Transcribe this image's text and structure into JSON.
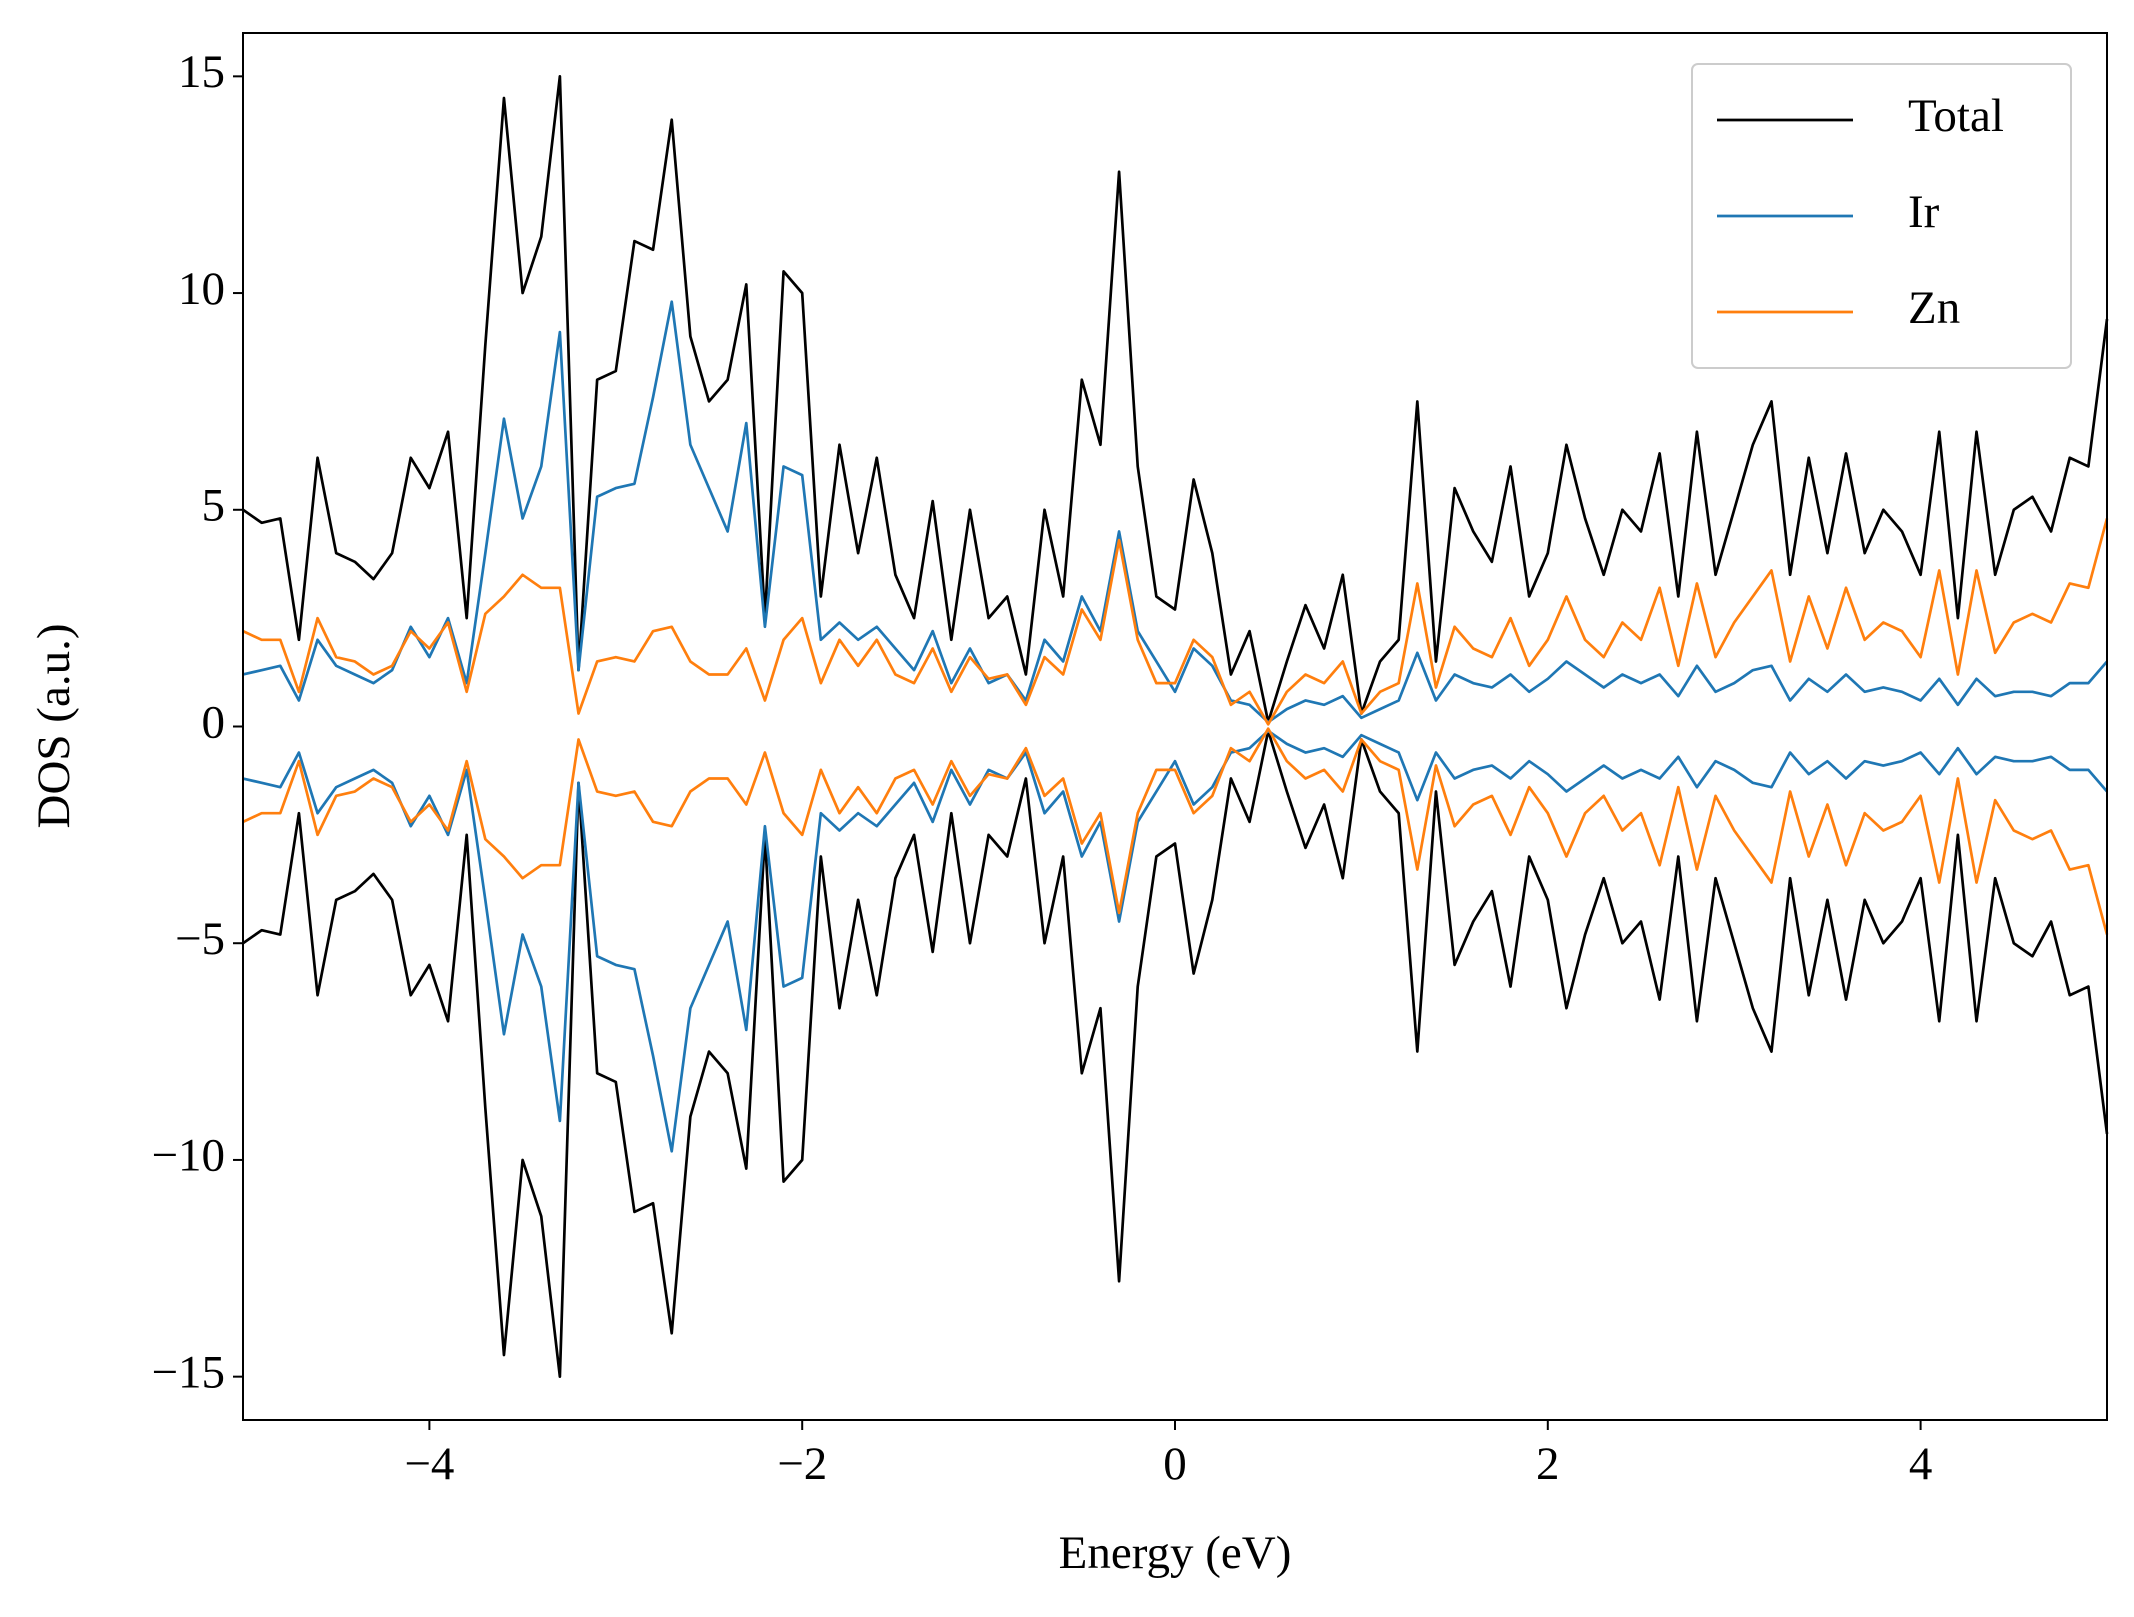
{
  "chart_data": {
    "type": "line",
    "xlabel": "Energy (eV)",
    "ylabel": "DOS (a.u.)",
    "xlim": [
      -5,
      5
    ],
    "ylim": [
      -16,
      16
    ],
    "xticks": [
      {
        "value": -4,
        "label": "−4"
      },
      {
        "value": -2,
        "label": "−2"
      },
      0,
      2,
      4
    ],
    "yticks": [
      {
        "value": -15,
        "label": "−15"
      },
      {
        "value": -10,
        "label": "−10"
      },
      {
        "value": -5,
        "label": "−5"
      },
      0,
      5,
      10,
      15
    ],
    "legend": "upper right",
    "x": [
      -5.0,
      -4.9,
      -4.8,
      -4.7,
      -4.6,
      -4.5,
      -4.4,
      -4.3,
      -4.2,
      -4.1,
      -4.0,
      -3.9,
      -3.8,
      -3.7,
      -3.6,
      -3.5,
      -3.4,
      -3.3,
      -3.2,
      -3.1,
      -3.0,
      -2.9,
      -2.8,
      -2.7,
      -2.6,
      -2.5,
      -2.4,
      -2.3,
      -2.2,
      -2.1,
      -2.0,
      -1.9,
      -1.8,
      -1.7,
      -1.6,
      -1.5,
      -1.4,
      -1.3,
      -1.2,
      -1.1,
      -1.0,
      -0.9,
      -0.8,
      -0.7,
      -0.6,
      -0.5,
      -0.4,
      -0.3,
      -0.2,
      -0.1,
      0.0,
      0.1,
      0.2,
      0.3,
      0.4,
      0.5,
      0.6,
      0.7,
      0.8,
      0.9,
      1.0,
      1.1,
      1.2,
      1.3,
      1.4,
      1.5,
      1.6,
      1.7,
      1.8,
      1.9,
      2.0,
      2.1,
      2.2,
      2.3,
      2.4,
      2.5,
      2.6,
      2.7,
      2.8,
      2.9,
      3.0,
      3.1,
      3.2,
      3.3,
      3.4,
      3.5,
      3.6,
      3.7,
      3.8,
      3.9,
      4.0,
      4.1,
      4.2,
      4.3,
      4.4,
      4.5,
      4.6,
      4.7,
      4.8,
      4.9,
      5.0
    ],
    "series": [
      {
        "name": "Total",
        "color": "#000000",
        "values": [
          5.0,
          4.7,
          4.8,
          2.0,
          6.2,
          4.0,
          3.8,
          3.4,
          4.0,
          6.2,
          5.5,
          6.8,
          2.5,
          8.8,
          14.5,
          10.0,
          11.3,
          15.0,
          1.3,
          8.0,
          8.2,
          11.2,
          11.0,
          14.0,
          9.0,
          7.5,
          8.0,
          10.2,
          2.5,
          10.5,
          10.0,
          3.0,
          6.5,
          4.0,
          6.2,
          3.5,
          2.5,
          5.2,
          2.0,
          5.0,
          2.5,
          3.0,
          1.2,
          5.0,
          3.0,
          8.0,
          6.5,
          12.8,
          6.0,
          3.0,
          2.7,
          5.7,
          4.0,
          1.2,
          2.2,
          0.1,
          1.5,
          2.8,
          1.8,
          3.5,
          0.3,
          1.5,
          2.0,
          7.5,
          1.5,
          5.5,
          4.5,
          3.8,
          6.0,
          3.0,
          4.0,
          6.5,
          4.8,
          3.5,
          5.0,
          4.5,
          6.3,
          3.0,
          6.8,
          3.5,
          5.0,
          6.5,
          7.5,
          3.5,
          6.2,
          4.0,
          6.3,
          4.0,
          5.0,
          4.5,
          3.5,
          6.8,
          2.5,
          6.8,
          3.5,
          5.0,
          5.3,
          4.5,
          6.2,
          6.0,
          9.4
        ],
        "values_down": [
          -5.0,
          -4.7,
          -4.8,
          -2.0,
          -6.2,
          -4.0,
          -3.8,
          -3.4,
          -4.0,
          -6.2,
          -5.5,
          -6.8,
          -2.5,
          -8.8,
          -14.5,
          -10.0,
          -11.3,
          -15.0,
          -1.3,
          -8.0,
          -8.2,
          -11.2,
          -11.0,
          -14.0,
          -9.0,
          -7.5,
          -8.0,
          -10.2,
          -2.5,
          -10.5,
          -10.0,
          -3.0,
          -6.5,
          -4.0,
          -6.2,
          -3.5,
          -2.5,
          -5.2,
          -2.0,
          -5.0,
          -2.5,
          -3.0,
          -1.2,
          -5.0,
          -3.0,
          -8.0,
          -6.5,
          -12.8,
          -6.0,
          -3.0,
          -2.7,
          -5.7,
          -4.0,
          -1.2,
          -2.2,
          -0.1,
          -1.5,
          -2.8,
          -1.8,
          -3.5,
          -0.3,
          -1.5,
          -2.0,
          -7.5,
          -1.5,
          -5.5,
          -4.5,
          -3.8,
          -6.0,
          -3.0,
          -4.0,
          -6.5,
          -4.8,
          -3.5,
          -5.0,
          -4.5,
          -6.3,
          -3.0,
          -6.8,
          -3.5,
          -5.0,
          -6.5,
          -7.5,
          -3.5,
          -6.2,
          -4.0,
          -6.3,
          -4.0,
          -5.0,
          -4.5,
          -3.5,
          -6.8,
          -2.5,
          -6.8,
          -3.5,
          -5.0,
          -5.3,
          -4.5,
          -6.2,
          -6.0,
          -9.4
        ]
      },
      {
        "name": "Ir",
        "color": "#1f77b4",
        "values": [
          1.2,
          1.3,
          1.4,
          0.6,
          2.0,
          1.4,
          1.2,
          1.0,
          1.3,
          2.3,
          1.6,
          2.5,
          1.0,
          4.0,
          7.1,
          4.8,
          6.0,
          9.1,
          1.3,
          5.3,
          5.5,
          5.6,
          7.6,
          9.8,
          6.5,
          5.5,
          4.5,
          7.0,
          2.3,
          6.0,
          5.8,
          2.0,
          2.4,
          2.0,
          2.3,
          1.8,
          1.3,
          2.2,
          1.0,
          1.8,
          1.0,
          1.2,
          0.6,
          2.0,
          1.5,
          3.0,
          2.2,
          4.5,
          2.2,
          1.5,
          0.8,
          1.8,
          1.4,
          0.6,
          0.5,
          0.1,
          0.4,
          0.6,
          0.5,
          0.7,
          0.2,
          0.4,
          0.6,
          1.7,
          0.6,
          1.2,
          1.0,
          0.9,
          1.2,
          0.8,
          1.1,
          1.5,
          1.2,
          0.9,
          1.2,
          1.0,
          1.2,
          0.7,
          1.4,
          0.8,
          1.0,
          1.3,
          1.4,
          0.6,
          1.1,
          0.8,
          1.2,
          0.8,
          0.9,
          0.8,
          0.6,
          1.1,
          0.5,
          1.1,
          0.7,
          0.8,
          0.8,
          0.7,
          1.0,
          1.0,
          1.5
        ],
        "values_down": [
          -1.2,
          -1.3,
          -1.4,
          -0.6,
          -2.0,
          -1.4,
          -1.2,
          -1.0,
          -1.3,
          -2.3,
          -1.6,
          -2.5,
          -1.0,
          -4.0,
          -7.1,
          -4.8,
          -6.0,
          -9.1,
          -1.3,
          -5.3,
          -5.5,
          -5.6,
          -7.6,
          -9.8,
          -6.5,
          -5.5,
          -4.5,
          -7.0,
          -2.3,
          -6.0,
          -5.8,
          -2.0,
          -2.4,
          -2.0,
          -2.3,
          -1.8,
          -1.3,
          -2.2,
          -1.0,
          -1.8,
          -1.0,
          -1.2,
          -0.6,
          -2.0,
          -1.5,
          -3.0,
          -2.2,
          -4.5,
          -2.2,
          -1.5,
          -0.8,
          -1.8,
          -1.4,
          -0.6,
          -0.5,
          -0.1,
          -0.4,
          -0.6,
          -0.5,
          -0.7,
          -0.2,
          -0.4,
          -0.6,
          -1.7,
          -0.6,
          -1.2,
          -1.0,
          -0.9,
          -1.2,
          -0.8,
          -1.1,
          -1.5,
          -1.2,
          -0.9,
          -1.2,
          -1.0,
          -1.2,
          -0.7,
          -1.4,
          -0.8,
          -1.0,
          -1.3,
          -1.4,
          -0.6,
          -1.1,
          -0.8,
          -1.2,
          -0.8,
          -0.9,
          -0.8,
          -0.6,
          -1.1,
          -0.5,
          -1.1,
          -0.7,
          -0.8,
          -0.8,
          -0.7,
          -1.0,
          -1.0,
          -1.5
        ]
      },
      {
        "name": "Zn",
        "color": "#ff7f0e",
        "values": [
          2.2,
          2.0,
          2.0,
          0.8,
          2.5,
          1.6,
          1.5,
          1.2,
          1.4,
          2.2,
          1.8,
          2.4,
          0.8,
          2.6,
          3.0,
          3.5,
          3.2,
          3.2,
          0.3,
          1.5,
          1.6,
          1.5,
          2.2,
          2.3,
          1.5,
          1.2,
          1.2,
          1.8,
          0.6,
          2.0,
          2.5,
          1.0,
          2.0,
          1.4,
          2.0,
          1.2,
          1.0,
          1.8,
          0.8,
          1.6,
          1.1,
          1.2,
          0.5,
          1.6,
          1.2,
          2.7,
          2.0,
          4.3,
          2.0,
          1.0,
          1.0,
          2.0,
          1.6,
          0.5,
          0.8,
          0.05,
          0.8,
          1.2,
          1.0,
          1.5,
          0.3,
          0.8,
          1.0,
          3.3,
          0.9,
          2.3,
          1.8,
          1.6,
          2.5,
          1.4,
          2.0,
          3.0,
          2.0,
          1.6,
          2.4,
          2.0,
          3.2,
          1.4,
          3.3,
          1.6,
          2.4,
          3.0,
          3.6,
          1.5,
          3.0,
          1.8,
          3.2,
          2.0,
          2.4,
          2.2,
          1.6,
          3.6,
          1.2,
          3.6,
          1.7,
          2.4,
          2.6,
          2.4,
          3.3,
          3.2,
          4.8
        ],
        "values_down": [
          -2.2,
          -2.0,
          -2.0,
          -0.8,
          -2.5,
          -1.6,
          -1.5,
          -1.2,
          -1.4,
          -2.2,
          -1.8,
          -2.4,
          -0.8,
          -2.6,
          -3.0,
          -3.5,
          -3.2,
          -3.2,
          -0.3,
          -1.5,
          -1.6,
          -1.5,
          -2.2,
          -2.3,
          -1.5,
          -1.2,
          -1.2,
          -1.8,
          -0.6,
          -2.0,
          -2.5,
          -1.0,
          -2.0,
          -1.4,
          -2.0,
          -1.2,
          -1.0,
          -1.8,
          -0.8,
          -1.6,
          -1.1,
          -1.2,
          -0.5,
          -1.6,
          -1.2,
          -2.7,
          -2.0,
          -4.3,
          -2.0,
          -1.0,
          -1.0,
          -2.0,
          -1.6,
          -0.5,
          -0.8,
          -0.05,
          -0.8,
          -1.2,
          -1.0,
          -1.5,
          -0.3,
          -0.8,
          -1.0,
          -3.3,
          -0.9,
          -2.3,
          -1.8,
          -1.6,
          -2.5,
          -1.4,
          -2.0,
          -3.0,
          -2.0,
          -1.6,
          -2.4,
          -2.0,
          -3.2,
          -1.4,
          -3.3,
          -1.6,
          -2.4,
          -3.0,
          -3.6,
          -1.5,
          -3.0,
          -1.8,
          -3.2,
          -2.0,
          -2.4,
          -2.2,
          -1.6,
          -3.6,
          -1.2,
          -3.6,
          -1.7,
          -2.4,
          -2.6,
          -2.4,
          -3.3,
          -3.2,
          -4.8
        ]
      }
    ]
  }
}
